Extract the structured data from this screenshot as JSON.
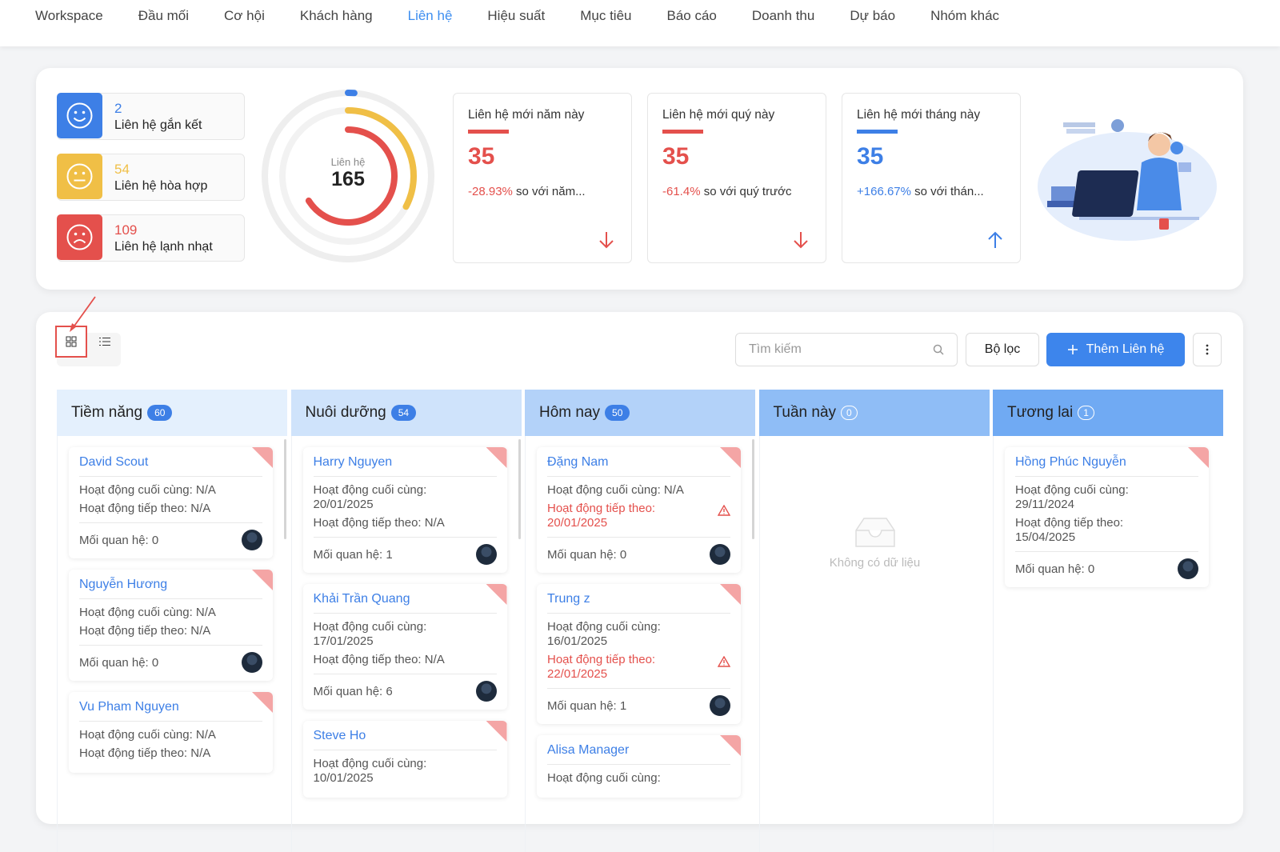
{
  "nav": {
    "items": [
      "Workspace",
      "Đầu mối",
      "Cơ hội",
      "Khách hàng",
      "Liên hệ",
      "Hiệu suất",
      "Mục tiêu",
      "Báo cáo",
      "Doanh thu",
      "Dự báo",
      "Nhóm khác"
    ],
    "active": 4
  },
  "summary": {
    "segments": [
      {
        "value": 2,
        "label": "Liên hệ gắn kết",
        "color": "#3d7fe6",
        "mood": "happy"
      },
      {
        "value": 54,
        "label": "Liên hệ hòa hợp",
        "color": "#f0bf46",
        "mood": "neutral"
      },
      {
        "value": 109,
        "label": "Liên hệ lạnh nhạt",
        "color": "#e4504c",
        "mood": "sad"
      }
    ],
    "total": {
      "label": "Liên hệ",
      "value": 165
    },
    "stats": [
      {
        "title": "Liên hệ mới năm này",
        "value": 35,
        "change": "-28.93%",
        "compare": "so với năm...",
        "direction": "down",
        "color": "#e4504c"
      },
      {
        "title": "Liên hệ mới quý này",
        "value": 35,
        "change": "-61.4%",
        "compare": "so với quý trước",
        "direction": "down",
        "color": "#e4504c"
      },
      {
        "title": "Liên hệ mới tháng này",
        "value": 35,
        "change": "+166.67%",
        "compare": "so với thán...",
        "direction": "up",
        "color": "#3d7fe6"
      }
    ]
  },
  "toolbar": {
    "search_placeholder": "Tìm kiếm",
    "filter": "Bộ lọc",
    "add": "Thêm Liên hệ"
  },
  "board": {
    "empty_text": "Không có dữ liệu",
    "columns": [
      {
        "title": "Tiềm năng",
        "count": 60,
        "color": "#e4f0fd",
        "badge": "filled",
        "cards": [
          {
            "name": "David Scout",
            "last_activity": "Hoạt động cuối cùng: N/A",
            "next_activity": "Hoạt động tiếp theo: N/A",
            "overdue": false,
            "relationship": "Mối quan hệ: 0"
          },
          {
            "name": "Nguyễn Hương",
            "last_activity": "Hoạt động cuối cùng: N/A",
            "next_activity": "Hoạt động tiếp theo: N/A",
            "overdue": false,
            "relationship": "Mối quan hệ: 0"
          },
          {
            "name": "Vu Pham Nguyen",
            "last_activity": "Hoạt động cuối cùng: N/A",
            "next_activity": "Hoạt động tiếp theo: N/A",
            "overdue": false
          }
        ]
      },
      {
        "title": "Nuôi dưỡng",
        "count": 54,
        "color": "#cfe3fb",
        "badge": "filled",
        "cards": [
          {
            "name": "Harry Nguyen",
            "last_activity": "Hoạt động cuối cùng: 20/01/2025",
            "next_activity": "Hoạt động tiếp theo: N/A",
            "overdue": false,
            "relationship": "Mối quan hệ: 1"
          },
          {
            "name": "Khải Trần Quang",
            "last_activity": "Hoạt động cuối cùng: 17/01/2025",
            "next_activity": "Hoạt động tiếp theo: N/A",
            "overdue": false,
            "relationship": "Mối quan hệ: 6"
          },
          {
            "name": "Steve Ho",
            "last_activity": "Hoạt động cuối cùng: 10/01/2025"
          }
        ]
      },
      {
        "title": "Hôm nay",
        "count": 50,
        "color": "#b3d2f9",
        "badge": "filled",
        "cards": [
          {
            "name": "Đặng Nam",
            "last_activity": "Hoạt động cuối cùng: N/A",
            "next_activity": "Hoạt động tiếp theo: 20/01/2025",
            "overdue": true,
            "relationship": "Mối quan hệ: 0"
          },
          {
            "name": "Trung z",
            "last_activity": "Hoạt động cuối cùng: 16/01/2025",
            "next_activity": "Hoạt động tiếp theo: 22/01/2025",
            "overdue": true,
            "relationship": "Mối quan hệ: 1"
          },
          {
            "name": "Alisa Manager",
            "last_activity": "Hoạt động cuối cùng:"
          }
        ]
      },
      {
        "title": "Tuần này",
        "count": 0,
        "color": "#8fbdf6",
        "badge": "outline",
        "cards": []
      },
      {
        "title": "Tương lai",
        "count": 1,
        "color": "#70aaf3",
        "badge": "outline",
        "cards": [
          {
            "name": "Hồng Phúc Nguyễn",
            "last_activity": "Hoạt động cuối cùng: 29/11/2024",
            "next_activity": "Hoạt động tiếp theo: 15/04/2025",
            "overdue": false,
            "relationship": "Mối quan hệ: 0"
          }
        ]
      }
    ]
  }
}
